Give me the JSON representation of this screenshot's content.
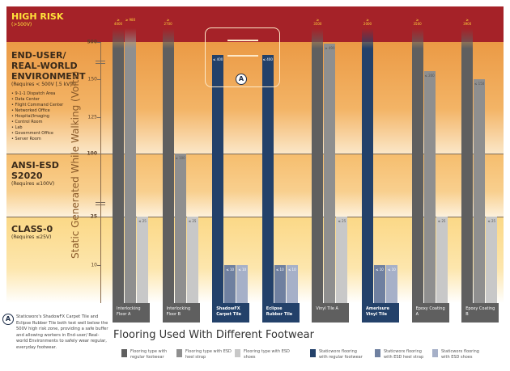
{
  "zones": {
    "high": {
      "title": "HIGH RISK",
      "sub": "(>500V)"
    },
    "end_user": {
      "title1": "END-USER/",
      "title2": "REAL-WORLD",
      "title3": "ENVIRONMENT",
      "sub": "(Requires < 500V [.5 kV]*)",
      "items": [
        "9-1-1 Dispatch Area",
        "Data Center",
        "Flight Command Center",
        "Networked Office",
        "Hospital/Imaging",
        "Control Room",
        "Lab",
        "Government Office",
        "Server Room"
      ]
    },
    "ansi": {
      "title1": "ANSI-ESD",
      "title2": "S2020",
      "sub": "(Requires ≤100V)"
    },
    "class0": {
      "title": "CLASS-0",
      "sub": "(Requires ≤25V)"
    }
  },
  "callout": {
    "badge": "A",
    "note": "Staticworx's ShadowFX Carpet Tile and Eclipse Rubber Tile both test well below the 500V high risk zone, providing a safe buffer and allowing workers in End-user/ Real-world Environments to safely wear regular, everyday footwear."
  },
  "chart_data": {
    "type": "bar",
    "ylabel": "Static Generated While Walking (Volts)",
    "xlabel": "Flooring Used With Different Footwear",
    "yticks": [
      "500",
      "150",
      "125",
      "100",
      "25",
      "10"
    ],
    "y_scale": "broken (non-linear)",
    "categories": [
      "Interlocking Floor A",
      "Interlocking Floor B",
      "ShadowFX Carpet Tile",
      "Eclipse Rubber Tile",
      "Vinyl Tile A",
      "Amerisure Vinyl Tile",
      "Epoxy Coating A",
      "Epoxy Coating B"
    ],
    "staticworx": [
      false,
      false,
      true,
      true,
      false,
      true,
      false,
      false
    ],
    "series": [
      {
        "name": "regular footwear",
        "values": [
          4000,
          2700,
          400,
          400,
          3500,
          2000,
          3500,
          3900
        ],
        "labels": [
          "≥ 4000",
          "≥ 2700",
          "≤ 400",
          "≤ 400",
          "≥ 3500",
          "≥ 2000",
          "≥ 3500",
          "≥ 3900"
        ]
      },
      {
        "name": "ESD heel strap",
        "values": [
          980,
          100,
          10,
          10,
          490,
          10,
          200,
          150
        ],
        "labels": [
          "≥ 980",
          "≤ 100",
          "≤ 10",
          "≤ 10",
          "≥ 490",
          "≤ 10",
          "≤ 200",
          "≤ 150"
        ]
      },
      {
        "name": "ESD shoes",
        "values": [
          25,
          25,
          10,
          10,
          25,
          10,
          25,
          25
        ],
        "labels": [
          "≤ 25",
          "≤ 25",
          "≤ 10",
          "≤ 10",
          "≤ 25",
          "≤ 10",
          "≤ 25",
          "≤ 25"
        ]
      }
    ],
    "legend": [
      {
        "label": "Flooring type with regular footwear",
        "color": "#5f5f5f"
      },
      {
        "label": "Flooring type with ESD heel strap",
        "color": "#8f8f8f"
      },
      {
        "label": "Flooring type with ESD shoes",
        "color": "#c8c8c8"
      },
      {
        "label": "Staticworx flooring with regular footwear",
        "color": "#23416a"
      },
      {
        "label": "Staticworx flooring with ESD heel strap",
        "color": "#6f80a0"
      },
      {
        "label": "Staticworx flooring with ESD shoes",
        "color": "#a6b0c8"
      }
    ],
    "legend_position": "bottom"
  }
}
